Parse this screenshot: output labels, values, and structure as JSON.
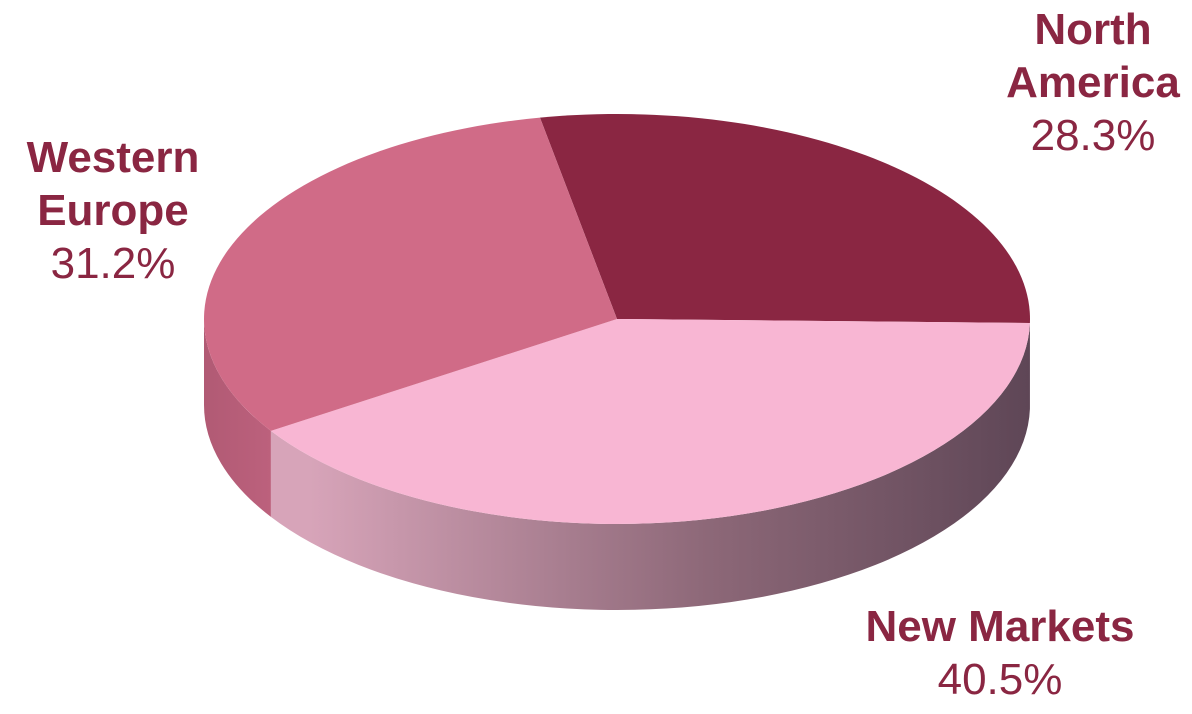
{
  "chart_data": {
    "type": "pie",
    "title": "",
    "three_d": true,
    "slices": [
      {
        "name_lines": [
          "North",
          "America"
        ],
        "value": 28.3,
        "label": "28.3%",
        "color": "#8a2642",
        "side_color": "#5e1a2e"
      },
      {
        "name_lines": [
          "New Markets"
        ],
        "value": 40.5,
        "label": "40.5%",
        "color": "#f8b6d3",
        "side_color_light": "#d7a4b9",
        "side_color_dark": "#5e4656"
      },
      {
        "name_lines": [
          "Western",
          "Europe"
        ],
        "value": 31.2,
        "label": "31.2%",
        "color": "#d06b87",
        "side_color": "#b15a74"
      }
    ],
    "label_color": "#8a2642"
  }
}
